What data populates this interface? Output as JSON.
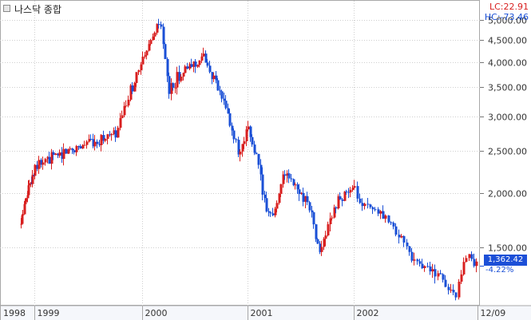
{
  "header": {
    "title": "나스닥 종합",
    "lc_label": "LC:22.91",
    "hc_label": "HC:-73.46"
  },
  "last": {
    "price": "1,362.42",
    "change": "-4.22%"
  },
  "colors": {
    "up": "#d81f1f",
    "down": "#1a4fd6",
    "grid": "#cfcfcf",
    "axis": "#777777"
  },
  "chart_data": {
    "type": "candlestick",
    "title": "나스닥 종합",
    "y_scale": "log",
    "ylim": [
      1120,
      5150
    ],
    "y_ticks": [
      {
        "value": 1500,
        "label": "1,500.00"
      },
      {
        "value": 2000,
        "label": "2,000.00"
      },
      {
        "value": 2500,
        "label": "2,500.00"
      },
      {
        "value": 3000,
        "label": "3,000.00"
      },
      {
        "value": 3500,
        "label": "3,500.00"
      },
      {
        "value": 4000,
        "label": "4,000.00"
      },
      {
        "value": 4500,
        "label": "4,500.00"
      },
      {
        "value": 5000,
        "label": "5,000.00"
      }
    ],
    "x_labels": [
      "1998",
      "1999",
      "2000",
      "2001",
      "2002",
      "12/09"
    ],
    "grid": true,
    "close_path": [
      [
        "1998-10",
        1690
      ],
      [
        "1998-11",
        1950
      ],
      [
        "1999-01",
        2300
      ],
      [
        "1999-04",
        2480
      ],
      [
        "1999-07",
        2620
      ],
      [
        "1999-10",
        2720
      ],
      [
        "1999-12",
        3600
      ],
      [
        "2000-03",
        4950
      ],
      [
        "2000-04",
        3400
      ],
      [
        "2000-05",
        3700
      ],
      [
        "2000-07",
        4000
      ],
      [
        "2000-08",
        4100
      ],
      [
        "2000-09",
        3700
      ],
      [
        "2000-10",
        3300
      ],
      [
        "2000-11",
        2900
      ],
      [
        "2000-12",
        2400
      ],
      [
        "2001-01",
        2800
      ],
      [
        "2001-02",
        2400
      ],
      [
        "2001-03",
        1850
      ],
      [
        "2001-04",
        1800
      ],
      [
        "2001-05",
        2250
      ],
      [
        "2001-06",
        2100
      ],
      [
        "2001-07",
        2000
      ],
      [
        "2001-08",
        1850
      ],
      [
        "2001-09",
        1450
      ],
      [
        "2001-10",
        1650
      ],
      [
        "2001-11",
        1900
      ],
      [
        "2001-12",
        2000
      ],
      [
        "2002-01",
        2020
      ],
      [
        "2002-02",
        1850
      ],
      [
        "2002-03",
        1800
      ],
      [
        "2002-04",
        1700
      ],
      [
        "2002-05",
        1600
      ],
      [
        "2002-06",
        1450
      ],
      [
        "2002-07",
        1350
      ],
      [
        "2002-08",
        1330
      ],
      [
        "2002-09",
        1250
      ],
      [
        "2002-10",
        1150
      ],
      [
        "2002-11",
        1450
      ],
      [
        "2002-12",
        1362.42
      ]
    ]
  }
}
